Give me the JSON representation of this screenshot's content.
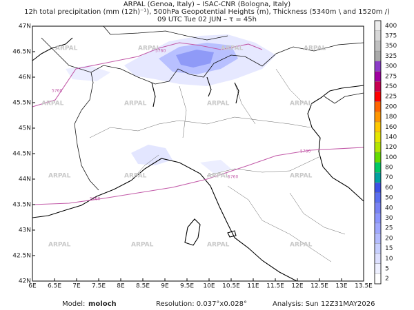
{
  "header": {
    "lines": [
      "ARPAL (Genoa, Italy)  –  ISAC-CNR (Bologna, Italy)",
      "12h total precipitation (mm (12h)⁻¹), 500hPa Geopotential Heights (m), Thickness (5340m \\ and 1520m /)",
      "09 UTC Tue 02 JUN   –   τ = 45h"
    ]
  },
  "map": {
    "xlim": [
      6,
      13.5
    ],
    "ylim": [
      42,
      47
    ],
    "xticks": [
      {
        "value": 6,
        "label": "6E"
      },
      {
        "value": 6.5,
        "label": "6.5E"
      },
      {
        "value": 7,
        "label": "7E"
      },
      {
        "value": 7.5,
        "label": "7.5E"
      },
      {
        "value": 8,
        "label": "8E"
      },
      {
        "value": 8.5,
        "label": "8.5E"
      },
      {
        "value": 9,
        "label": "9E"
      },
      {
        "value": 9.5,
        "label": "9.5E"
      },
      {
        "value": 10,
        "label": "10E"
      },
      {
        "value": 10.5,
        "label": "10.5E"
      },
      {
        "value": 11,
        "label": "11E"
      },
      {
        "value": 11.5,
        "label": "11.5E"
      },
      {
        "value": 12,
        "label": "12E"
      },
      {
        "value": 12.5,
        "label": "12.5E"
      },
      {
        "value": 13,
        "label": "13E"
      },
      {
        "value": 13.5,
        "label": "13.5E"
      }
    ],
    "yticks": [
      {
        "value": 42,
        "label": "42N"
      },
      {
        "value": 42.5,
        "label": "42.5N"
      },
      {
        "value": 43,
        "label": "43N"
      },
      {
        "value": 43.5,
        "label": "43.5N"
      },
      {
        "value": 44,
        "label": "44N"
      },
      {
        "value": 44.5,
        "label": "44.5N"
      },
      {
        "value": 45,
        "label": "45N"
      },
      {
        "value": 45.5,
        "label": "45.5N"
      },
      {
        "value": 46,
        "label": "46N"
      },
      {
        "value": 46.5,
        "label": "46.5N"
      },
      {
        "value": 47,
        "label": "47N"
      }
    ],
    "contour_label": "5760",
    "watermark": "ARPAL"
  },
  "colorbar": {
    "levels": [
      2,
      5,
      10,
      15,
      20,
      25,
      30,
      40,
      50,
      60,
      70,
      80,
      100,
      120,
      140,
      160,
      180,
      200,
      225,
      250,
      275,
      300,
      325,
      350,
      375,
      400
    ],
    "colors": [
      "#ffffff",
      "#eef0ff",
      "#dde0ff",
      "#c8d0ff",
      "#b4bcff",
      "#a0a8ff",
      "#8c96ff",
      "#7882f5",
      "#5a6ef0",
      "#3c50e6",
      "#00a0a0",
      "#00c864",
      "#64dc00",
      "#b4e600",
      "#e6e600",
      "#ffc800",
      "#ff9600",
      "#ff6400",
      "#ff0000",
      "#c80050",
      "#a000a0",
      "#8c3cc8",
      "#aaaaaa",
      "#c0c0c0",
      "#d8d8d8",
      "#ececec"
    ]
  },
  "footer": {
    "model_label": "Model:",
    "model": "moloch",
    "resolution": "Resolution: 0.037°x0.028°",
    "analysis": "Analysis: Sun 12Z31MAY2026"
  }
}
